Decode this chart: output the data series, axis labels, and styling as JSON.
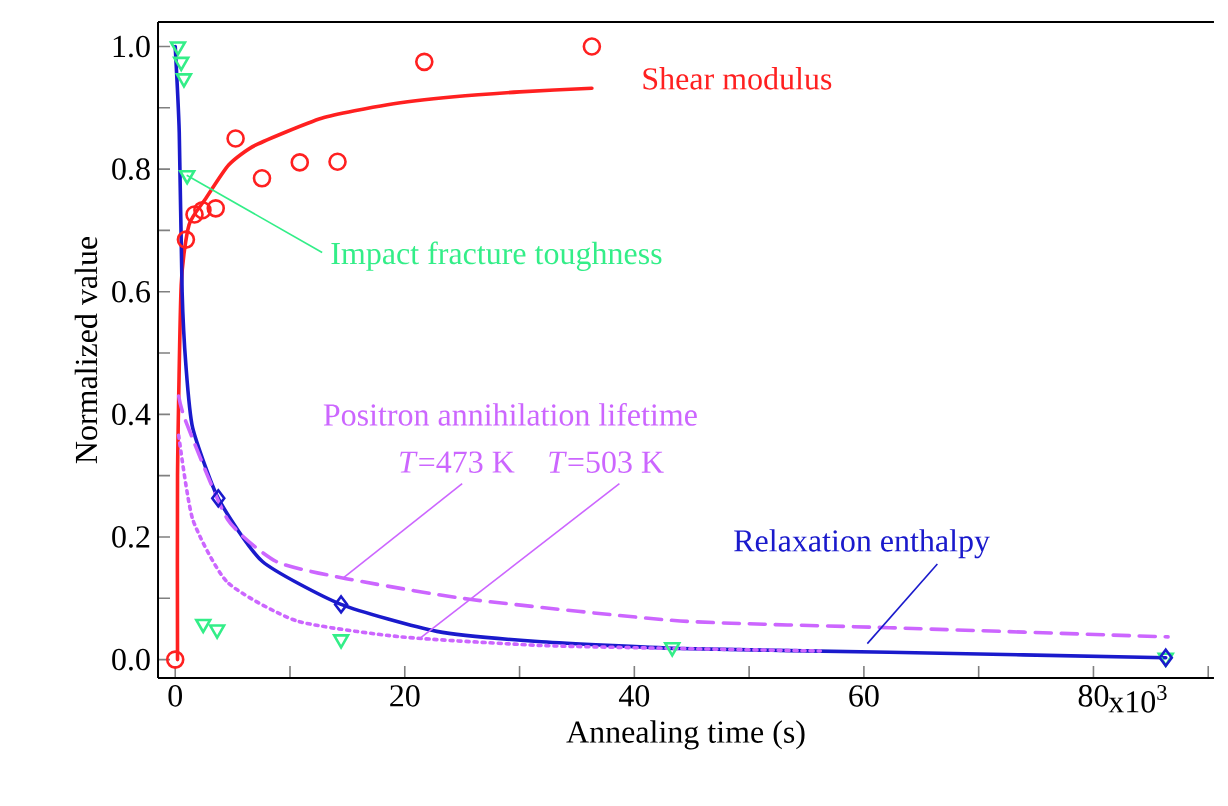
{
  "chart_data": {
    "type": "scatter",
    "xlabel": "Annealing time (s)",
    "ylabel": "Normalized value",
    "xlim": [
      -1.5,
      90.5
    ],
    "ylim": [
      -0.03,
      1.04
    ],
    "xticks": [
      {
        "value": 0,
        "label": "0"
      },
      {
        "value": 10,
        "label": null
      },
      {
        "value": 20,
        "label": "20"
      },
      {
        "value": 30,
        "label": null
      },
      {
        "value": 40,
        "label": "40"
      },
      {
        "value": 50,
        "label": null
      },
      {
        "value": 60,
        "label": "60"
      },
      {
        "value": 70,
        "label": null
      },
      {
        "value": 80,
        "label": "80"
      },
      {
        "value": 90,
        "label": null
      }
    ],
    "yticks": [
      {
        "value": 0,
        "label": "0.0"
      },
      {
        "value": 0.1,
        "label": null
      },
      {
        "value": 0.2,
        "label": "0.2"
      },
      {
        "value": 0.3,
        "label": null
      },
      {
        "value": 0.4,
        "label": "0.4"
      },
      {
        "value": 0.5,
        "label": null
      },
      {
        "value": 0.6,
        "label": "0.6"
      },
      {
        "value": 0.7,
        "label": null
      },
      {
        "value": 0.8,
        "label": "0.8"
      },
      {
        "value": 0.9,
        "label": null
      },
      {
        "value": 1.0,
        "label": "1.0"
      }
    ],
    "annotations": [
      "Positron annihilation lifetime",
      "x10$^{3}$"
    ],
    "series": [
      {
        "name": "Shear modulus",
        "type": "scatter",
        "marker": "circle",
        "color": "#ff2020",
        "x": [
          0,
          0.93,
          1.68,
          2.37,
          3.53,
          5.26,
          7.56,
          10.85,
          14.14,
          21.7,
          36.3
        ],
        "values": [
          0,
          0.685,
          0.726,
          0.733,
          0.736,
          0.85,
          0.785,
          0.811,
          0.812,
          0.975,
          1.0
        ]
      },
      {
        "type": "line",
        "color": "#ff2020",
        "line_style": "solid",
        "x": [
          0.2,
          0.2,
          0.52,
          1.2,
          2.66,
          4.67,
          6.99,
          12.75,
          18.5,
          24.3,
          30.0,
          36.3
        ],
        "values": [
          0,
          0.3,
          0.611,
          0.709,
          0.752,
          0.807,
          0.839,
          0.883,
          0.905,
          0.918,
          0.926,
          0.932
        ]
      },
      {
        "name": "Impact fracture toughness",
        "type": "scatter",
        "marker": "triangle",
        "color": "#33ee88",
        "x": [
          0.24,
          0.52,
          0.76,
          1.04,
          2.44,
          3.65,
          14.45,
          43.3,
          86.3
        ],
        "values": [
          1.0,
          0.975,
          0.948,
          0.79,
          0.058,
          0.049,
          0.033,
          0.02,
          0.003
        ]
      },
      {
        "name": "Relaxation enthalpy",
        "type": "line",
        "color": "#1a1acc",
        "line_style": "solid",
        "x": [
          0,
          0.35,
          0.6,
          0.93,
          1.52,
          3.75,
          7.6,
          14.45,
          22.8,
          31.9,
          44,
          62.2,
          86.3
        ],
        "values": [
          1.0,
          0.86,
          0.6,
          0.48,
          0.378,
          0.263,
          0.16,
          0.09,
          0.046,
          0.029,
          0.018,
          0.012,
          0.003
        ]
      },
      {
        "type": "scatter",
        "marker": "diamond",
        "color": "#1a1acc",
        "x": [
          3.75,
          14.45,
          86.3
        ],
        "values": [
          0.263,
          0.09,
          0.003
        ]
      },
      {
        "name": "*T*=473 K",
        "type": "line",
        "color": "#cc66ff",
        "line_style": "dashed",
        "x": [
          0.3,
          0.91,
          4.55,
          8.8,
          14.9,
          25.8,
          44,
          62.2,
          86.5
        ],
        "values": [
          0.43,
          0.389,
          0.229,
          0.16,
          0.132,
          0.098,
          0.063,
          0.052,
          0.037
        ]
      },
      {
        "name": "*T*=503 K",
        "type": "line",
        "color": "#cc66ff",
        "line_style": "dotted",
        "x": [
          0.3,
          1.52,
          4.55,
          10.6,
          19.7,
          31.9,
          44,
          56.2
        ],
        "values": [
          0.366,
          0.229,
          0.126,
          0.063,
          0.037,
          0.023,
          0.018,
          0.014
        ]
      }
    ]
  }
}
